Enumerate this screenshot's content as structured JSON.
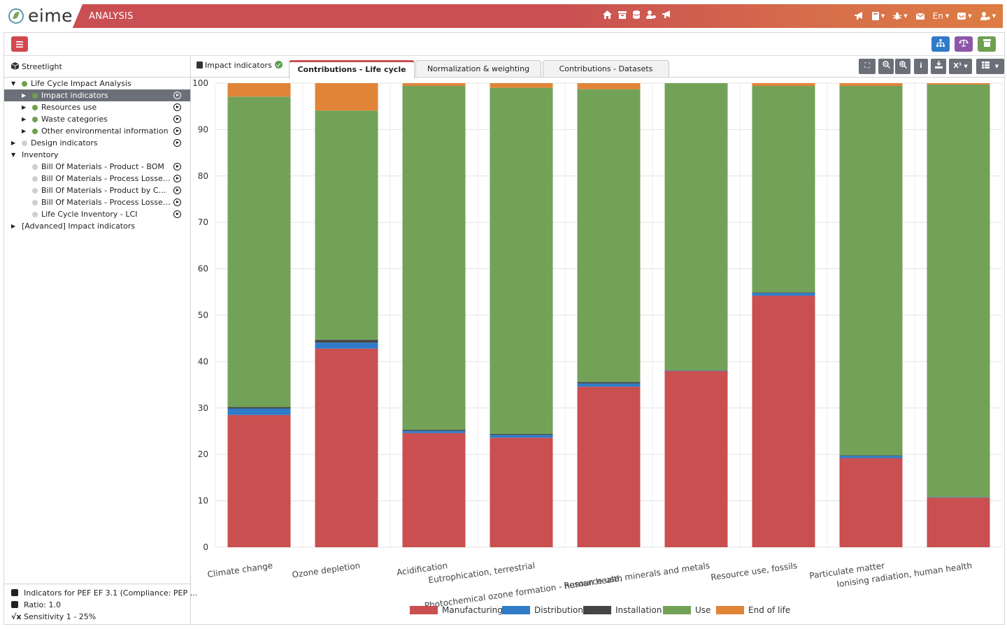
{
  "app": {
    "logo_text": "eime",
    "module_title": "ANALYSIS",
    "language": "En"
  },
  "nav": {
    "center_icons": [
      "home-icon",
      "archive-icon",
      "database-icon",
      "user-cog-icon",
      "bullhorn-icon"
    ],
    "right_icons": [
      "bullhorn-icon",
      "book-icon",
      "bug-icon",
      "envelope-icon",
      "inbox-icon",
      "user-cog-icon"
    ]
  },
  "sidebar": {
    "project": "Streetlight",
    "tree": [
      {
        "label": "Life Cycle Impact Analysis",
        "level": 0,
        "expand": "open",
        "dot": "green",
        "play": false,
        "selected": false
      },
      {
        "label": "Impact indicators",
        "level": 1,
        "expand": "closed",
        "dot": "green",
        "play": true,
        "selected": true
      },
      {
        "label": "Resources use",
        "level": 1,
        "expand": "closed",
        "dot": "green",
        "play": true,
        "selected": false
      },
      {
        "label": "Waste categories",
        "level": 1,
        "expand": "closed",
        "dot": "green",
        "play": true,
        "selected": false
      },
      {
        "label": "Other environmental information",
        "level": 1,
        "expand": "closed",
        "dot": "green",
        "play": true,
        "selected": false
      },
      {
        "label": "Design indicators",
        "level": 0,
        "expand": "closed",
        "dot": "grey",
        "play": true,
        "selected": false
      },
      {
        "label": "Inventory",
        "level": 0,
        "expand": "open",
        "dot": "none",
        "play": false,
        "selected": false
      },
      {
        "label": "Bill Of Materials - Product - BOM",
        "level": 1,
        "expand": "none",
        "dot": "grey",
        "play": true,
        "selected": false
      },
      {
        "label": "Bill Of Materials - Process Losses - ...",
        "level": 1,
        "expand": "none",
        "dot": "grey",
        "play": true,
        "selected": false
      },
      {
        "label": "Bill Of Materials - Product by Categ...",
        "level": 1,
        "expand": "none",
        "dot": "grey",
        "play": true,
        "selected": false
      },
      {
        "label": "Bill Of Materials - Process Losses by...",
        "level": 1,
        "expand": "none",
        "dot": "grey",
        "play": true,
        "selected": false
      },
      {
        "label": "Life Cycle Inventory - LCI",
        "level": 1,
        "expand": "none",
        "dot": "grey",
        "play": true,
        "selected": false
      },
      {
        "label": "[Advanced] Impact indicators",
        "level": 0,
        "expand": "closed",
        "dot": "none",
        "play": false,
        "selected": false
      }
    ],
    "footer": {
      "method": "Indicators for PEF EF 3.1 (Compliance: PEP ...",
      "ratio": "Ratio: 1.0",
      "sensitivity": "Sensitivity 1 - 25%"
    }
  },
  "tabs": {
    "impact": "Impact indicators",
    "items": [
      "Contributions - Life cycle",
      "Normalization & weighting",
      "Contributions - Datasets"
    ],
    "active_index": 0
  },
  "toolbar": {
    "superscript_label": "X¹"
  },
  "colors": {
    "brand_red": "#c94f52",
    "accent_blue": "#2f7bc8",
    "accent_purple": "#8e56a8",
    "accent_green": "#6ea04f"
  },
  "chart_data": {
    "type": "bar",
    "stacked": true,
    "ylim": [
      0,
      100
    ],
    "yticks": [
      0,
      10,
      20,
      30,
      40,
      50,
      60,
      70,
      80,
      90,
      100
    ],
    "grid": true,
    "legend_position": "bottom",
    "categories": [
      "Climate change",
      "Ozone depletion",
      "Acidification",
      "Eutrophication, terrestrial",
      "Photochemical ozone formation - human health",
      "Resource use, minerals and metals",
      "Resource use, fossils",
      "Particulate matter",
      "Ionising radiation, human health"
    ],
    "series": [
      {
        "name": "Manufacturing",
        "color": "#c94f50",
        "values": [
          28.5,
          42.8,
          24.6,
          23.6,
          34.6,
          38.0,
          54.2,
          19.2,
          10.7
        ]
      },
      {
        "name": "Distribution",
        "color": "#2f7bc8",
        "values": [
          1.4,
          1.3,
          0.5,
          0.6,
          0.7,
          0.1,
          0.6,
          0.5,
          0.1
        ]
      },
      {
        "name": "Installation",
        "color": "#444444",
        "values": [
          0.3,
          0.6,
          0.2,
          0.2,
          0.3,
          0.0,
          0.1,
          0.1,
          0.0
        ]
      },
      {
        "name": "Use",
        "color": "#72a258",
        "values": [
          66.9,
          49.4,
          74.1,
          74.6,
          63.1,
          61.9,
          44.5,
          79.6,
          88.9
        ]
      },
      {
        "name": "End of life",
        "color": "#e08538",
        "values": [
          2.9,
          5.9,
          0.6,
          1.0,
          1.3,
          0.0,
          0.6,
          0.6,
          0.3
        ]
      }
    ]
  }
}
